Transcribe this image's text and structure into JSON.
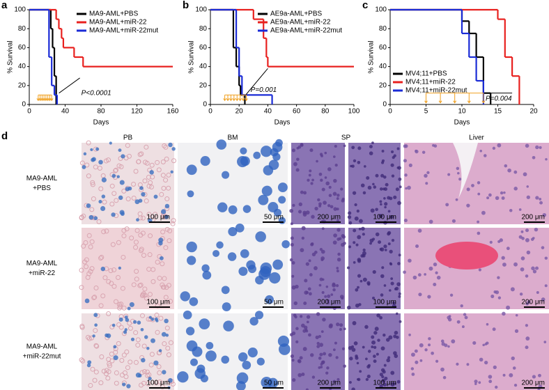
{
  "chart_data": [
    {
      "type": "line",
      "panel_label": "a",
      "xlabel": "Days",
      "ylabel": "% Survival",
      "xlim": [
        0,
        160
      ],
      "xticks": [
        0,
        40,
        80,
        120,
        160
      ],
      "ylim": [
        0,
        100
      ],
      "yticks": [
        0,
        20,
        40,
        60,
        80,
        100
      ],
      "legend": "upper right",
      "annotation": "P<0.0001",
      "series": [
        {
          "name": "MA9-AML+PBS",
          "color": "#000000",
          "x": [
            0,
            24,
            26,
            28,
            30
          ],
          "values": [
            100,
            80,
            60,
            30,
            0
          ]
        },
        {
          "name": "MA9-AML+miR-22",
          "color": "#e8201e",
          "x": [
            0,
            30,
            33,
            36,
            38,
            50,
            60,
            160
          ],
          "values": [
            100,
            90,
            80,
            70,
            60,
            50,
            40,
            40
          ]
        },
        {
          "name": "MA9-AML+miR-22mut",
          "color": "#1a2bd6",
          "x": [
            0,
            22,
            25,
            28,
            31
          ],
          "values": [
            100,
            50,
            20,
            10,
            0
          ]
        }
      ]
    },
    {
      "type": "line",
      "panel_label": "b",
      "xlabel": "Days",
      "ylabel": "% Survival",
      "xlim": [
        0,
        100
      ],
      "xticks": [
        0,
        20,
        40,
        60,
        80,
        100
      ],
      "ylim": [
        0,
        100
      ],
      "yticks": [
        0,
        20,
        40,
        60,
        80,
        100
      ],
      "legend": "upper right",
      "annotation": "P=0.001",
      "series": [
        {
          "name": "AE9a-AML+PBS",
          "color": "#000000",
          "x": [
            0,
            16,
            18,
            20,
            21,
            24
          ],
          "values": [
            100,
            60,
            40,
            20,
            10,
            0
          ]
        },
        {
          "name": "AE9a-AML+miR-22",
          "color": "#e8201e",
          "x": [
            0,
            30,
            37,
            39,
            40,
            100
          ],
          "values": [
            100,
            90,
            70,
            50,
            40,
            40
          ]
        },
        {
          "name": "AE9a-AML+miR-22mut",
          "color": "#1a2bd6",
          "x": [
            0,
            18,
            20,
            22,
            43
          ],
          "values": [
            100,
            60,
            30,
            10,
            0
          ]
        }
      ]
    },
    {
      "type": "line",
      "panel_label": "c",
      "xlabel": "Days",
      "ylabel": "% Survival",
      "xlim": [
        0,
        20
      ],
      "xticks": [
        0,
        5,
        10,
        15,
        20
      ],
      "ylim": [
        0,
        100
      ],
      "yticks": [
        0,
        20,
        40,
        60,
        80,
        100
      ],
      "legend": "lower left",
      "annotation": "P=0.004",
      "series": [
        {
          "name": "MV4;11+PBS",
          "color": "#000000",
          "x": [
            0,
            10,
            11,
            12,
            13,
            14
          ],
          "values": [
            100,
            88,
            75,
            50,
            12,
            0
          ]
        },
        {
          "name": "MV4;11+miR-22",
          "color": "#e8201e",
          "x": [
            0,
            15,
            16,
            17,
            18
          ],
          "values": [
            100,
            90,
            50,
            30,
            0
          ]
        },
        {
          "name": "MV4;11+miR-22mut",
          "color": "#1a2bd6",
          "x": [
            0,
            10,
            11,
            12,
            13
          ],
          "values": [
            100,
            75,
            50,
            25,
            0
          ]
        }
      ]
    }
  ],
  "panel_d": {
    "label": "d",
    "columns": [
      "PB",
      "BM",
      "SP",
      "Liver"
    ],
    "rows": [
      [
        "MA9-AML",
        "+PBS"
      ],
      [
        "MA9-AML",
        "+miR-22"
      ],
      [
        "MA9-AML",
        "+miR-22mut"
      ]
    ],
    "scale_bars": [
      [
        "100 μm",
        "50 μm",
        "200 μm",
        "100 μm",
        "200 μm"
      ],
      [
        "100 μm",
        "50 μm",
        "200 μm",
        "100 μm",
        "200 μm"
      ],
      [
        "100 μm",
        "50 μm",
        "200 μm",
        "100 μm",
        "200 μm"
      ]
    ]
  }
}
